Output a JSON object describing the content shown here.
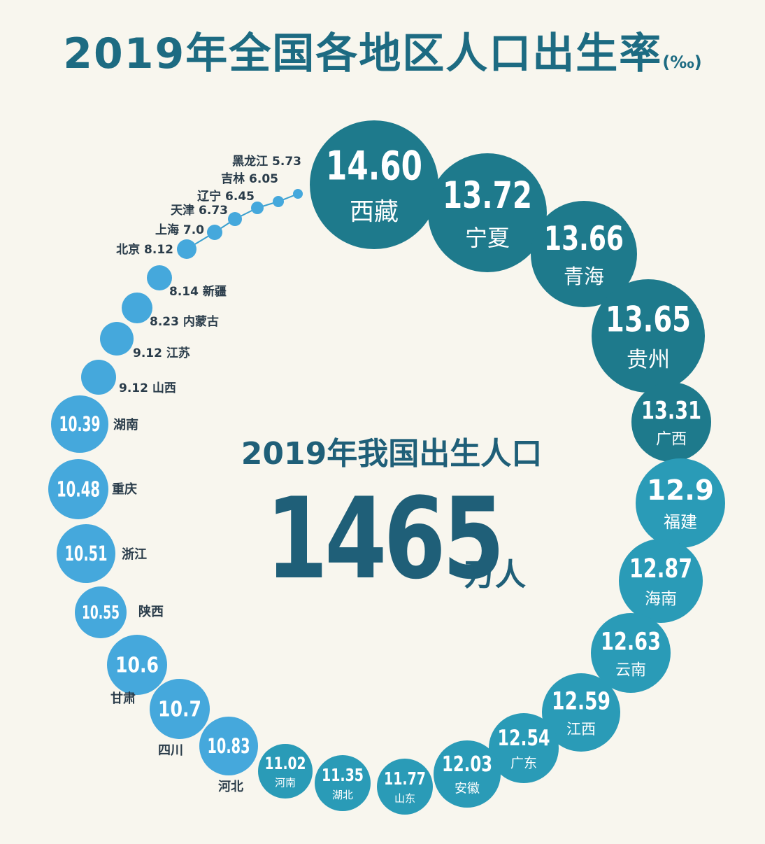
{
  "title": {
    "main": "2019年全国各地区人口出生率",
    "unit": "(‰)"
  },
  "center": {
    "subtitle": "2019年我国出生人口",
    "number": "1465",
    "unit": "万人"
  },
  "colors": {
    "dark": "#1e7a8c",
    "mid": "#2a9bb7",
    "light": "#45a8dc",
    "title": "#1d6b82"
  },
  "chart_data": {
    "type": "bubble-ring",
    "unit": "‰",
    "series": [
      {
        "region": "西藏",
        "value": 14.6,
        "label": "14.60"
      },
      {
        "region": "宁夏",
        "value": 13.72,
        "label": "13.72"
      },
      {
        "region": "青海",
        "value": 13.66,
        "label": "13.66"
      },
      {
        "region": "贵州",
        "value": 13.65,
        "label": "13.65"
      },
      {
        "region": "广西",
        "value": 13.31,
        "label": "13.31"
      },
      {
        "region": "福建",
        "value": 12.9,
        "label": "12.9"
      },
      {
        "region": "海南",
        "value": 12.87,
        "label": "12.87"
      },
      {
        "region": "云南",
        "value": 12.63,
        "label": "12.63"
      },
      {
        "region": "江西",
        "value": 12.59,
        "label": "12.59"
      },
      {
        "region": "广东",
        "value": 12.54,
        "label": "12.54"
      },
      {
        "region": "安徽",
        "value": 12.03,
        "label": "12.03"
      },
      {
        "region": "山东",
        "value": 11.77,
        "label": "11.77"
      },
      {
        "region": "湖北",
        "value": 11.35,
        "label": "11.35"
      },
      {
        "region": "河南",
        "value": 11.02,
        "label": "11.02"
      },
      {
        "region": "河北",
        "value": 10.83,
        "label": "10.83"
      },
      {
        "region": "四川",
        "value": 10.7,
        "label": "10.7"
      },
      {
        "region": "甘肃",
        "value": 10.6,
        "label": "10.6"
      },
      {
        "region": "陕西",
        "value": 10.55,
        "label": "10.55"
      },
      {
        "region": "浙江",
        "value": 10.51,
        "label": "10.51"
      },
      {
        "region": "重庆",
        "value": 10.48,
        "label": "10.48"
      },
      {
        "region": "湖南",
        "value": 10.39,
        "label": "10.39"
      },
      {
        "region": "山西",
        "value": 9.12,
        "label": "9.12 山西"
      },
      {
        "region": "江苏",
        "value": 9.12,
        "label": "9.12 江苏"
      },
      {
        "region": "内蒙古",
        "value": 8.23,
        "label": "8.23 内蒙古"
      },
      {
        "region": "新疆",
        "value": 8.14,
        "label": "8.14 新疆"
      },
      {
        "region": "北京",
        "value": 8.12,
        "label": "北京 8.12"
      },
      {
        "region": "上海",
        "value": 7.0,
        "label": "上海 7.0"
      },
      {
        "region": "天津",
        "value": 6.73,
        "label": "天津 6.73"
      },
      {
        "region": "辽宁",
        "value": 6.45,
        "label": "辽宁 6.45"
      },
      {
        "region": "吉林",
        "value": 6.05,
        "label": "吉林 6.05"
      },
      {
        "region": "黑龙江",
        "value": 5.73,
        "label": "黑龙江 5.73"
      }
    ]
  }
}
